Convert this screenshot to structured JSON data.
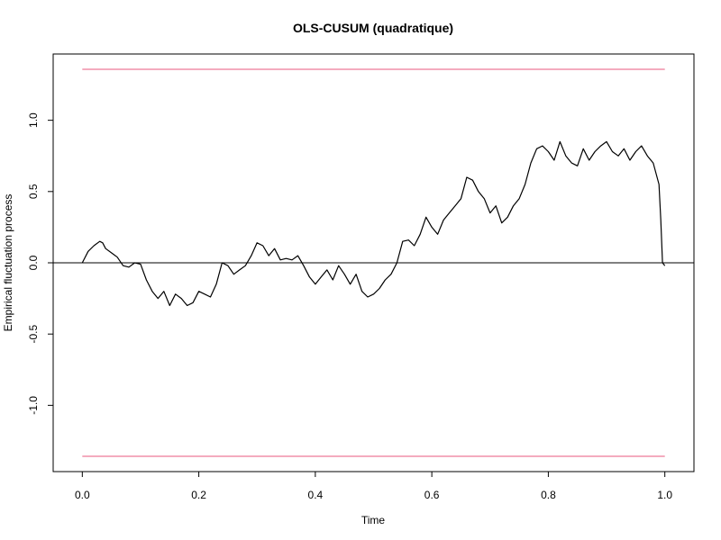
{
  "chart_data": {
    "type": "line",
    "title": "OLS-CUSUM (quadratique)",
    "xlabel": "Time",
    "ylabel": "Empirical fluctuation process",
    "xlim": [
      -0.05,
      1.05
    ],
    "ylim": [
      -1.465,
      1.465
    ],
    "x_ticks": [
      0.0,
      0.2,
      0.4,
      0.6,
      0.8,
      1.0
    ],
    "x_tick_labels": [
      "0.0",
      "0.2",
      "0.4",
      "0.6",
      "0.8",
      "1.0"
    ],
    "y_ticks": [
      -1.0,
      -0.5,
      0.0,
      0.5,
      1.0
    ],
    "y_tick_labels": [
      "-1.0",
      "-0.5",
      "0.0",
      "0.5",
      "1.0"
    ],
    "boundaries": [
      {
        "name": "upper boundary",
        "value": 1.358,
        "color": "#E8577D"
      },
      {
        "name": "lower boundary",
        "value": -1.358,
        "color": "#E8577D"
      }
    ],
    "reference_line": {
      "name": "zero line",
      "value": 0.0,
      "color": "#000000"
    },
    "series": [
      {
        "name": "empirical fluctuation process",
        "color": "#000000",
        "x": [
          0.0,
          0.01,
          0.02,
          0.03,
          0.035,
          0.04,
          0.05,
          0.06,
          0.07,
          0.08,
          0.09,
          0.1,
          0.11,
          0.12,
          0.13,
          0.14,
          0.15,
          0.16,
          0.17,
          0.18,
          0.19,
          0.2,
          0.21,
          0.22,
          0.23,
          0.24,
          0.25,
          0.26,
          0.27,
          0.28,
          0.29,
          0.3,
          0.31,
          0.32,
          0.33,
          0.34,
          0.35,
          0.36,
          0.37,
          0.38,
          0.39,
          0.4,
          0.41,
          0.42,
          0.43,
          0.44,
          0.45,
          0.46,
          0.47,
          0.48,
          0.49,
          0.5,
          0.51,
          0.52,
          0.53,
          0.54,
          0.55,
          0.56,
          0.57,
          0.58,
          0.59,
          0.6,
          0.61,
          0.62,
          0.63,
          0.64,
          0.65,
          0.66,
          0.67,
          0.68,
          0.69,
          0.7,
          0.71,
          0.72,
          0.73,
          0.74,
          0.75,
          0.76,
          0.77,
          0.78,
          0.79,
          0.8,
          0.81,
          0.82,
          0.83,
          0.84,
          0.85,
          0.86,
          0.87,
          0.88,
          0.89,
          0.9,
          0.91,
          0.92,
          0.93,
          0.94,
          0.95,
          0.96,
          0.97,
          0.98,
          0.99,
          0.993,
          0.996,
          1.0
        ],
        "values": [
          0.0,
          0.08,
          0.12,
          0.15,
          0.14,
          0.1,
          0.07,
          0.04,
          -0.02,
          -0.03,
          0.0,
          -0.01,
          -0.12,
          -0.2,
          -0.25,
          -0.2,
          -0.3,
          -0.22,
          -0.25,
          -0.3,
          -0.28,
          -0.2,
          -0.22,
          -0.24,
          -0.15,
          0.0,
          -0.02,
          -0.08,
          -0.05,
          -0.02,
          0.05,
          0.14,
          0.12,
          0.05,
          0.1,
          0.02,
          0.03,
          0.02,
          0.05,
          -0.02,
          -0.1,
          -0.15,
          -0.1,
          -0.05,
          -0.12,
          -0.02,
          -0.08,
          -0.15,
          -0.08,
          -0.2,
          -0.24,
          -0.22,
          -0.18,
          -0.12,
          -0.08,
          0.0,
          0.15,
          0.16,
          0.12,
          0.2,
          0.32,
          0.25,
          0.2,
          0.3,
          0.35,
          0.4,
          0.45,
          0.6,
          0.58,
          0.5,
          0.45,
          0.35,
          0.4,
          0.28,
          0.32,
          0.4,
          0.45,
          0.55,
          0.7,
          0.8,
          0.82,
          0.78,
          0.72,
          0.85,
          0.75,
          0.7,
          0.68,
          0.8,
          0.72,
          0.78,
          0.82,
          0.85,
          0.78,
          0.75,
          0.8,
          0.72,
          0.78,
          0.82,
          0.75,
          0.7,
          0.55,
          0.3,
          0.0,
          -0.02
        ]
      }
    ]
  }
}
